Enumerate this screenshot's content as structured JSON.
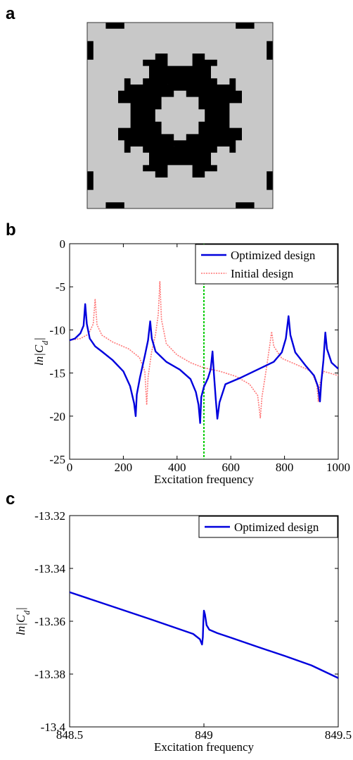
{
  "panels": {
    "a": {
      "letter": "a"
    },
    "b": {
      "letter": "b"
    },
    "c": {
      "letter": "c"
    }
  },
  "topology": {
    "grid_size": 30,
    "colors": {
      "solid": "#000000",
      "void": "#c8c8c8",
      "border": "#333333"
    }
  },
  "chart_data": [
    {
      "id": "b",
      "type": "line",
      "xlabel": "Excitation  frequency",
      "ylabel": "ln|C_d|",
      "xlim": [
        0,
        1000
      ],
      "ylim": [
        -25,
        0
      ],
      "xticks": [
        "0",
        "200",
        "400",
        "600",
        "800",
        "1000"
      ],
      "yticks": [
        "0",
        "-5",
        "-10",
        "-15",
        "-20",
        "-25"
      ],
      "xtick_values": [
        0,
        200,
        400,
        600,
        800,
        1000
      ],
      "ytick_values": [
        0,
        -5,
        -10,
        -15,
        -20,
        -25
      ],
      "grid": false,
      "legend": "top-right",
      "excitation_line": {
        "x": 500,
        "color": "#00cc00"
      },
      "series": [
        {
          "name": "Optimized design",
          "color": "#0000dd",
          "style": "solid",
          "points": [
            [
              0,
              -11.2
            ],
            [
              20,
              -11.0
            ],
            [
              40,
              -10.4
            ],
            [
              52,
              -9.5
            ],
            [
              58,
              -7.0
            ],
            [
              64,
              -9.3
            ],
            [
              75,
              -11.0
            ],
            [
              95,
              -11.9
            ],
            [
              120,
              -12.5
            ],
            [
              160,
              -13.5
            ],
            [
              200,
              -14.8
            ],
            [
              225,
              -16.5
            ],
            [
              240,
              -18.5
            ],
            [
              246,
              -20.0
            ],
            [
              250,
              -17.5
            ],
            [
              262,
              -15.5
            ],
            [
              280,
              -13.0
            ],
            [
              292,
              -11.2
            ],
            [
              300,
              -9.0
            ],
            [
              306,
              -11.0
            ],
            [
              320,
              -12.5
            ],
            [
              360,
              -13.7
            ],
            [
              410,
              -14.6
            ],
            [
              450,
              -15.7
            ],
            [
              470,
              -17.2
            ],
            [
              480,
              -18.7
            ],
            [
              486,
              -20.8
            ],
            [
              490,
              -17.8
            ],
            [
              500,
              -16.6
            ],
            [
              515,
              -15.6
            ],
            [
              525,
              -14.6
            ],
            [
              532,
              -12.5
            ],
            [
              537,
              -15.0
            ],
            [
              544,
              -18.0
            ],
            [
              550,
              -20.3
            ],
            [
              558,
              -18.4
            ],
            [
              580,
              -16.3
            ],
            [
              640,
              -15.5
            ],
            [
              700,
              -14.6
            ],
            [
              760,
              -13.7
            ],
            [
              790,
              -12.6
            ],
            [
              805,
              -11.0
            ],
            [
              815,
              -8.4
            ],
            [
              822,
              -10.6
            ],
            [
              840,
              -12.6
            ],
            [
              880,
              -14.2
            ],
            [
              910,
              -15.3
            ],
            [
              925,
              -16.6
            ],
            [
              932,
              -18.3
            ],
            [
              937,
              -16.0
            ],
            [
              945,
              -13.5
            ],
            [
              952,
              -10.3
            ],
            [
              958,
              -12.2
            ],
            [
              975,
              -13.8
            ],
            [
              1000,
              -14.5
            ]
          ]
        },
        {
          "name": "Initial design",
          "color": "#ff7777",
          "style": "dotted",
          "points": [
            [
              0,
              -11.2
            ],
            [
              40,
              -11.0
            ],
            [
              70,
              -10.5
            ],
            [
              88,
              -9.3
            ],
            [
              95,
              -6.4
            ],
            [
              102,
              -9.4
            ],
            [
              120,
              -10.6
            ],
            [
              160,
              -11.4
            ],
            [
              220,
              -12.2
            ],
            [
              260,
              -13.2
            ],
            [
              280,
              -14.8
            ],
            [
              287,
              -18.7
            ],
            [
              292,
              -15.5
            ],
            [
              305,
              -12.6
            ],
            [
              320,
              -10.5
            ],
            [
              330,
              -8.2
            ],
            [
              336,
              -4.4
            ],
            [
              342,
              -8.8
            ],
            [
              360,
              -11.6
            ],
            [
              400,
              -12.9
            ],
            [
              450,
              -13.8
            ],
            [
              500,
              -14.4
            ],
            [
              560,
              -14.8
            ],
            [
              620,
              -15.4
            ],
            [
              670,
              -16.3
            ],
            [
              700,
              -17.6
            ],
            [
              710,
              -20.2
            ],
            [
              716,
              -17.8
            ],
            [
              730,
              -15.0
            ],
            [
              745,
              -11.8
            ],
            [
              752,
              -10.2
            ],
            [
              760,
              -11.9
            ],
            [
              790,
              -13.3
            ],
            [
              850,
              -14.1
            ],
            [
              900,
              -14.8
            ],
            [
              920,
              -16.3
            ],
            [
              926,
              -18.3
            ],
            [
              932,
              -16.2
            ],
            [
              945,
              -14.8
            ],
            [
              1000,
              -15.3
            ]
          ]
        }
      ]
    },
    {
      "id": "c",
      "type": "line",
      "xlabel": "Excitation  frequency",
      "ylabel": "ln|C_d|",
      "xlim": [
        848.5,
        849.5
      ],
      "ylim": [
        -13.4,
        -13.32
      ],
      "xticks": [
        "848.5",
        "849",
        "849.5"
      ],
      "yticks": [
        "-13.32",
        "-13.34",
        "-13.36",
        "-13.38",
        "-13.4"
      ],
      "xtick_values": [
        848.5,
        849,
        849.5
      ],
      "ytick_values": [
        -13.32,
        -13.34,
        -13.36,
        -13.38,
        -13.4
      ],
      "grid": false,
      "legend": "top-right",
      "series": [
        {
          "name": "Optimized design",
          "color": "#0000dd",
          "style": "solid",
          "points": [
            [
              848.5,
              -13.349
            ],
            [
              848.6,
              -13.3524
            ],
            [
              848.7,
              -13.3558
            ],
            [
              848.8,
              -13.3592
            ],
            [
              848.9,
              -13.3627
            ],
            [
              848.96,
              -13.3648
            ],
            [
              848.985,
              -13.3668
            ],
            [
              848.993,
              -13.3688
            ],
            [
              848.996,
              -13.366
            ],
            [
              848.998,
              -13.3598
            ],
            [
              849.0,
              -13.356
            ],
            [
              849.004,
              -13.3575
            ],
            [
              849.01,
              -13.3615
            ],
            [
              849.02,
              -13.3632
            ],
            [
              849.05,
              -13.3645
            ],
            [
              849.1,
              -13.3662
            ],
            [
              849.2,
              -13.3697
            ],
            [
              849.3,
              -13.3731
            ],
            [
              849.4,
              -13.3767
            ],
            [
              849.5,
              -13.3815
            ]
          ]
        }
      ]
    }
  ]
}
